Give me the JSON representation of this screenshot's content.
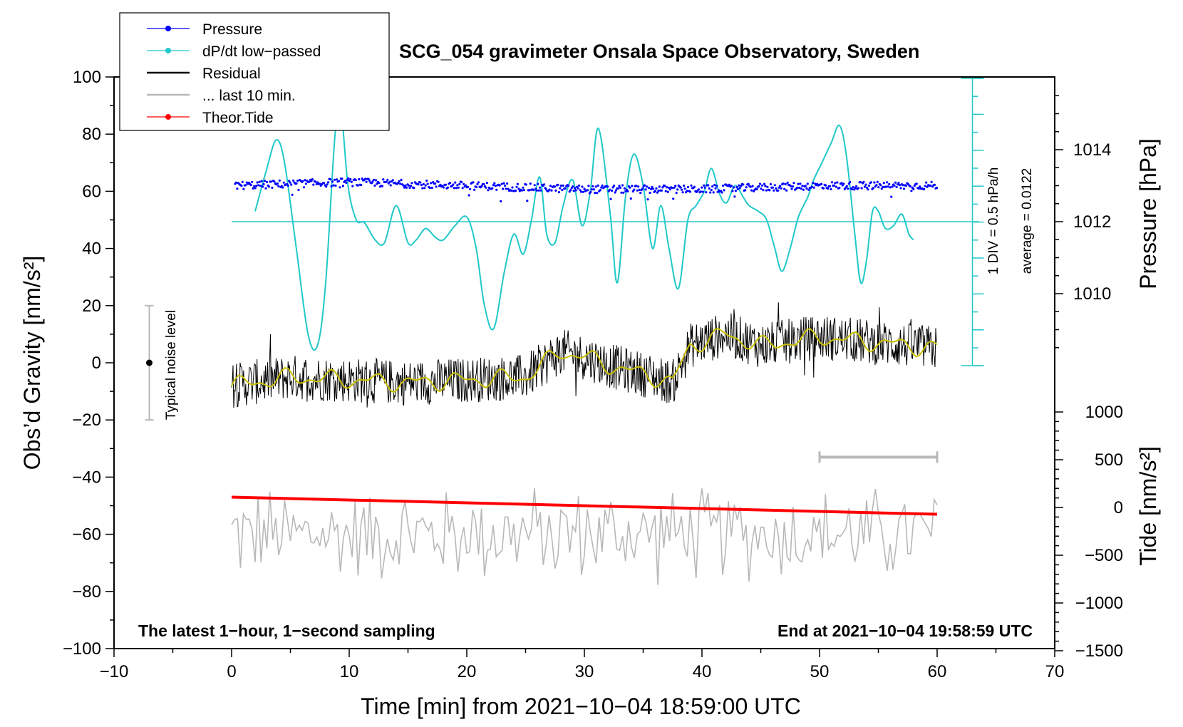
{
  "chart_data": {
    "type": "line",
    "title": "SCG_054 gravimeter Onsala Space Observatory, Sweden",
    "xlabel": "Time [min] from 2021−10−04 18:59:00 UTC",
    "ylabel_left": "Obs’d Gravity [nm/s²]",
    "ylabel_right_top": "Pressure [hPa]",
    "ylabel_right_bottom": "Tide [nm/s²]",
    "xlim": [
      -10,
      70
    ],
    "ylim": [
      -100,
      100
    ],
    "x_ticks": [
      "−10",
      "0",
      "10",
      "20",
      "30",
      "40",
      "50",
      "60",
      "70"
    ],
    "y_ticks": [
      "100",
      "80",
      "60",
      "40",
      "20",
      "0",
      "−20",
      "−40",
      "−60",
      "−80",
      "−100"
    ],
    "pressure_ticks": [
      "1014",
      "1012",
      "1010"
    ],
    "pressure_ticks_values": [
      1014,
      1012,
      1010
    ],
    "tide_ticks": [
      "1000",
      "500",
      "0",
      "−500",
      "−1000",
      "−1500"
    ],
    "tide_ticks_values": [
      1000,
      500,
      0,
      -500,
      -1000,
      -1500
    ],
    "legend": [
      {
        "label": "Pressure",
        "color": "#0000ff",
        "marker": true
      },
      {
        "label": "dP/dt low−passed",
        "color": "#20c8c8",
        "marker": true
      },
      {
        "label": "Residual",
        "color": "#000000",
        "marker": false
      },
      {
        "label": "... last 10 min.",
        "color": "#b8b8b8",
        "marker": false
      },
      {
        "label": "Theor.Tide",
        "color": "#ff0000",
        "marker": true
      }
    ],
    "annotations": {
      "noise": "Typical noise level",
      "div": "1 DIV = 0.5 hPa/h",
      "average": "average = 0.0122",
      "footer_left": "The latest 1−hour, 1−second sampling",
      "footer_right": "End at 2021−10−04 19:58:59 UTC"
    },
    "noise_level": {
      "x": -7,
      "y": 0,
      "low": -20,
      "high": 20
    },
    "last10_marker": {
      "x_start": 50,
      "x_end": 60,
      "y": -33
    },
    "series": [
      {
        "name": "Pressure",
        "unit": "hPa",
        "x": [
          0,
          10,
          20,
          30,
          40,
          50,
          60
        ],
        "values": [
          1013.0,
          1013.1,
          1013.0,
          1012.9,
          1012.9,
          1013.0,
          1013.0
        ]
      },
      {
        "name": "dP/dt low−passed",
        "unit": "nm/s2 axis scaled",
        "x": [
          2,
          3,
          3.8,
          4.5,
          5.5,
          6.5,
          7.3,
          8.0,
          8.8,
          9.3,
          9.9,
          10.6,
          11.3,
          12.2,
          13.0,
          14.0,
          15.0,
          15.7,
          16.5,
          17.3,
          18.0,
          19.0,
          20.0,
          20.8,
          21.5,
          22.3,
          23.2,
          24.0,
          24.8,
          25.5,
          26.2,
          26.8,
          27.5,
          28.2,
          29.0,
          29.8,
          30.5,
          31.2,
          32.2,
          32.8,
          33.5,
          34.2,
          35.0,
          35.8,
          36.5,
          37.2,
          38.0,
          38.8,
          39.5,
          40.2,
          40.8,
          41.5,
          42.1,
          42.8,
          43.5,
          44.0,
          44.8,
          45.5,
          46.2,
          46.8,
          47.5,
          48.2,
          49.0,
          49.5,
          50.2,
          51.0,
          51.7,
          52.3,
          53.0,
          53.5,
          54.0,
          54.5,
          55.0,
          55.6,
          56.3,
          57.0,
          57.6,
          58.0
        ],
        "values": [
          53,
          68,
          78,
          70,
          40,
          10,
          6,
          28,
          80,
          88,
          62,
          50,
          49,
          43,
          42,
          55,
          42,
          43,
          47,
          44,
          43,
          48,
          51,
          40,
          20,
          12,
          32,
          45,
          38,
          50,
          65,
          45,
          42,
          55,
          64,
          48,
          60,
          82,
          52,
          28,
          58,
          73,
          62,
          40,
          55,
          40,
          26,
          50,
          55,
          60,
          68,
          59,
          56,
          62,
          58,
          55,
          53,
          50,
          40,
          32,
          40,
          51,
          58,
          64,
          70,
          77,
          83,
          72,
          45,
          28,
          36,
          53,
          53,
          47,
          48,
          52,
          45,
          43
        ]
      },
      {
        "name": "Residual",
        "unit": "nm/s2",
        "x": [
          0,
          5,
          10,
          15,
          20,
          25,
          28,
          30,
          33,
          36,
          37.5,
          39,
          42,
          45,
          50,
          55,
          60
        ],
        "values": [
          -8,
          -5,
          -6,
          -7,
          -6,
          -5,
          4,
          2,
          -2,
          -5,
          -7,
          6,
          10,
          6,
          9,
          7,
          5
        ]
      },
      {
        "name": "... last 10 min.",
        "unit": "nm/s2",
        "x": [
          0,
          60
        ],
        "values": [
          -60,
          -60
        ]
      },
      {
        "name": "Theor.Tide",
        "unit": "nm/s2",
        "x": [
          0,
          60
        ],
        "values": [
          -47,
          -53
        ]
      }
    ]
  }
}
